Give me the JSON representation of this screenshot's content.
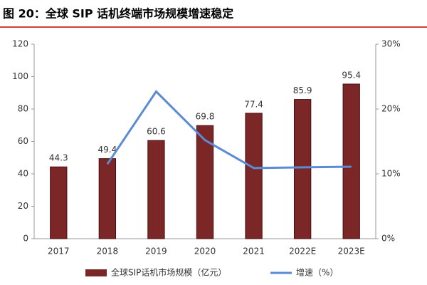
{
  "chart_data": {
    "type": "bar",
    "title": "图 20：全球 SIP 话机终端市场规模增速稳定",
    "categories": [
      "2017",
      "2018",
      "2019",
      "2020",
      "2021",
      "2022E",
      "2023E"
    ],
    "series": [
      {
        "name": "全球SIP话机市场规模（亿元）",
        "type": "bar",
        "color": "#7b2727",
        "values": [
          44.3,
          49.4,
          60.6,
          69.8,
          77.4,
          85.9,
          95.4
        ]
      },
      {
        "name": "增速（%）",
        "type": "line",
        "axis": "y2",
        "color": "#5b8bd5",
        "values": [
          null,
          11.5,
          22.7,
          15.2,
          10.9,
          11.0,
          11.1
        ]
      }
    ],
    "ylim": [
      0,
      120
    ],
    "yticks": [
      0,
      20,
      40,
      60,
      80,
      100,
      120
    ],
    "y2lim": [
      0,
      30
    ],
    "y2ticks": [
      {
        "value": 0,
        "label": "0%"
      },
      {
        "value": 10,
        "label": "10%"
      },
      {
        "value": 20,
        "label": "20%"
      },
      {
        "value": 30,
        "label": "30%"
      }
    ],
    "legend": "bottom"
  }
}
